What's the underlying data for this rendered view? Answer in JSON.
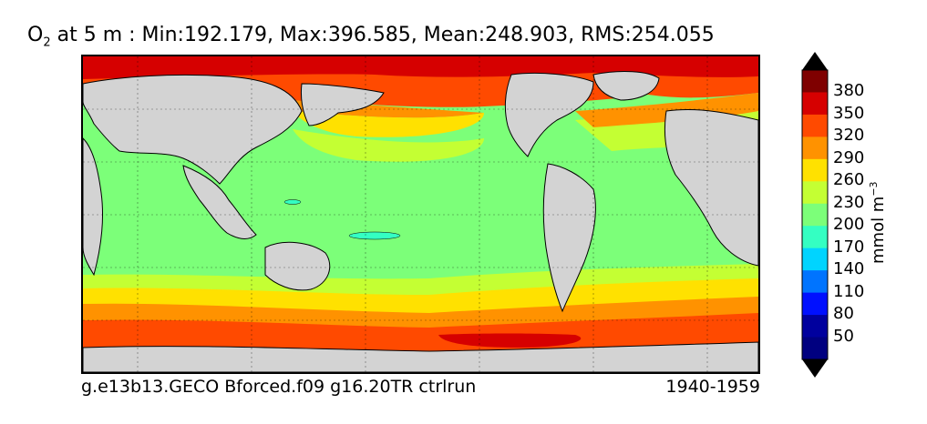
{
  "title": {
    "symbol": "O",
    "subscript": "2",
    "text": " at 5 m : Min:192.179, Max:396.585, Mean:248.903, RMS:254.055"
  },
  "footer": {
    "run_name": "g.e13b13.GECO Bforced.f09 g16.20TR ctrlrun",
    "period": "1940-1959"
  },
  "colorbar": {
    "unit_main": "mmol m",
    "unit_exp": "−3",
    "tick_labels": [
      "380",
      "350",
      "320",
      "290",
      "260",
      "230",
      "200",
      "170",
      "140",
      "110",
      "80",
      "50"
    ],
    "colors_top_to_bottom": [
      "#7f0000",
      "#d60000",
      "#ff4a00",
      "#ff9200",
      "#ffe100",
      "#c4ff33",
      "#7cff79",
      "#34ffc2",
      "#00d4ff",
      "#0074ff",
      "#0010ff",
      "#00009e",
      "#000080"
    ],
    "over_color": "#000000",
    "under_color": "#000000"
  },
  "map": {
    "land_color": "#d3d3d3",
    "ocean_fill": "#7cff79",
    "grid": true
  }
}
